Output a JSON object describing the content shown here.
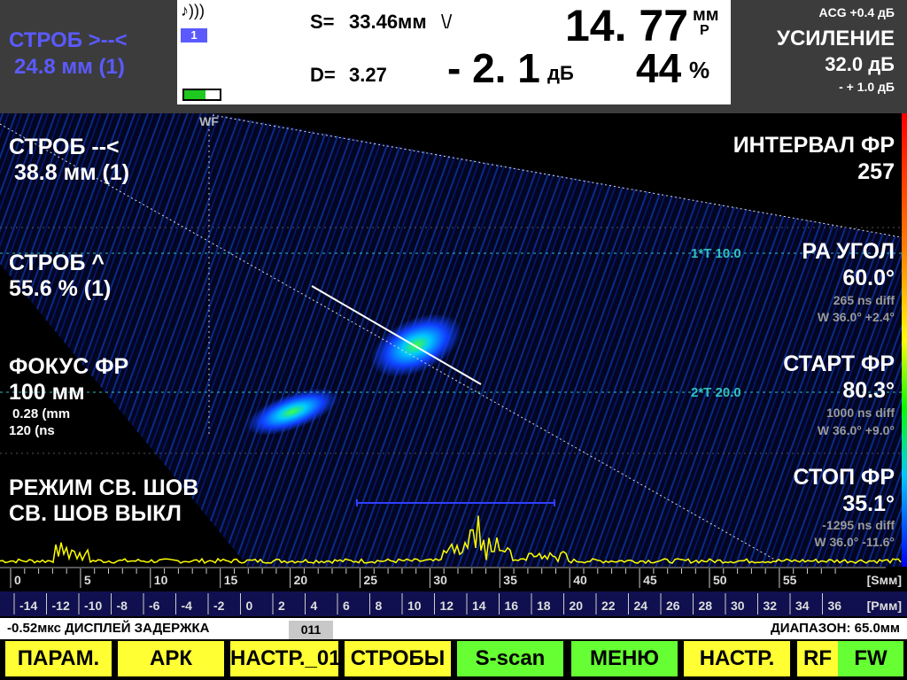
{
  "header": {
    "gate_a_label": "СТРОБ >--<",
    "gate_a_value": "24.8 мм (1)",
    "sound_icon": "♪)))",
    "channel": "1",
    "s_label": "S=",
    "s_value": "33.46мм",
    "v_mark": "\\/",
    "main_value": "14. 77",
    "main_unit": "мм",
    "main_sub": "P",
    "d_label": "D=",
    "d_value": "3.27",
    "db_value": "- 2. 1",
    "db_unit": "дБ",
    "percent_value": "44",
    "percent_unit": "%",
    "acg": "ACG +0.4 дБ",
    "gain_label": "УСИЛЕНИЕ",
    "gain_value": "32.0 дБ",
    "gain_step": "- + 1.0 дБ"
  },
  "left_panel": [
    {
      "label": "СТРОБ --<",
      "value": "38.8 мм (1)"
    },
    {
      "label": "СТРОБ ^",
      "value": "55.6 % (1)"
    },
    {
      "label": "ФОКУС ФР",
      "value": "100 мм",
      "extra": [
        "0.28 (mm",
        "120 (ns"
      ]
    },
    {
      "label": "РЕЖИМ СВ. ШОВ",
      "value": "СВ. ШОВ ВЫКЛ"
    }
  ],
  "right_panel": [
    {
      "label": "ИНТЕРВАЛ ФР",
      "value": "257"
    },
    {
      "label": "PA УГОЛ",
      "value": "60.0°",
      "info": [
        "265 ns diff",
        "W 36.0° +2.4°"
      ]
    },
    {
      "label": "СТАРТ ФР",
      "value": "80.3°",
      "info": [
        "1000 ns diff",
        "W 36.0° +9.0°"
      ]
    },
    {
      "label": "СТОП ФР",
      "value": "35.1°",
      "info": [
        "-1295 ns diff",
        "W 36.0° -11.6°"
      ]
    }
  ],
  "scan": {
    "wf": "WF",
    "t1": "1*T 10.0",
    "t2": "2*T 20.0"
  },
  "ruler_s": {
    "ticks": [
      0,
      5,
      10,
      15,
      20,
      25,
      30,
      35,
      40,
      45,
      50,
      55
    ],
    "unit": "[Sмм]"
  },
  "ruler_p": {
    "ticks": [
      -14,
      -12,
      -10,
      -8,
      -6,
      -4,
      -2,
      0,
      2,
      4,
      6,
      8,
      10,
      12,
      14,
      16,
      18,
      20,
      22,
      24,
      26,
      28,
      30,
      32,
      34,
      36
    ],
    "unit": "[Pмм]"
  },
  "status": {
    "delay": "-0.52мкс  ДИСПЛЕЙ ЗАДЕРЖКА",
    "tab": "011",
    "range": "ДИАПАЗОН: 65.0мм"
  },
  "buttons": [
    "ПАРАМ.",
    "АРК",
    "НАСТР._01:",
    "СТРОБЫ",
    "S-scan",
    "МЕНЮ",
    "НАСТР.",
    "RF",
    "FW"
  ]
}
